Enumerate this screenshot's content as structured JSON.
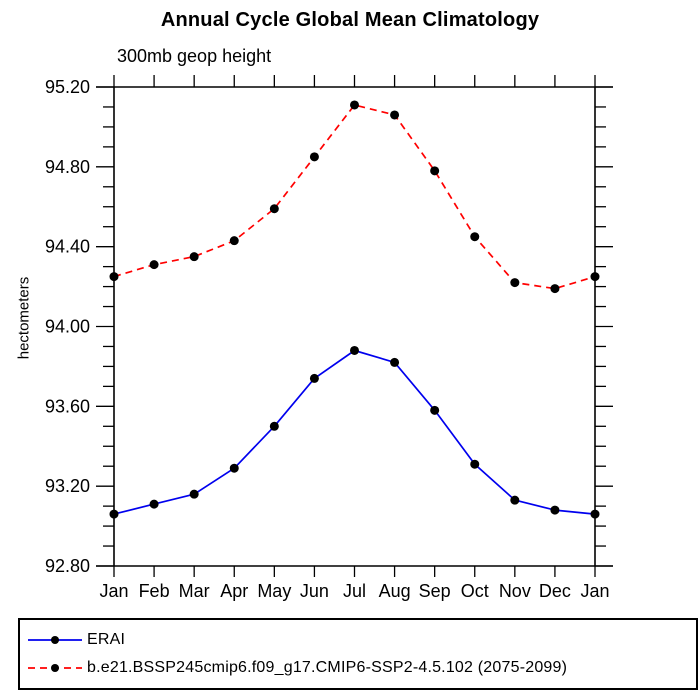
{
  "title": "Annual Cycle Global Mean Climatology",
  "subtitle": "300mb geop height",
  "chart_data": {
    "type": "line",
    "categories": [
      "Jan",
      "Feb",
      "Mar",
      "Apr",
      "May",
      "Jun",
      "Jul",
      "Aug",
      "Sep",
      "Oct",
      "Nov",
      "Dec",
      "Jan"
    ],
    "series": [
      {
        "name": "ERAI",
        "color": "#0000ee",
        "line_style": "solid",
        "marker": "filled-circle",
        "marker_color": "#000000",
        "values": [
          93.06,
          93.11,
          93.16,
          93.29,
          93.5,
          93.74,
          93.88,
          93.82,
          93.58,
          93.31,
          93.13,
          93.08,
          93.06
        ]
      },
      {
        "name": "b.e21.BSSP245cmip6.f09_g17.CMIP6-SSP2-4.5.102 (2075-2099)",
        "color": "#ff0000",
        "line_style": "dashed",
        "marker": "filled-circle",
        "marker_color": "#000000",
        "values": [
          94.25,
          94.31,
          94.35,
          94.43,
          94.59,
          94.85,
          95.11,
          95.06,
          94.78,
          94.45,
          94.22,
          94.19,
          94.25
        ]
      }
    ],
    "title": "Annual Cycle Global Mean Climatology",
    "subtitle": "300mb geop height",
    "xlabel": "",
    "ylabel": "hectometers",
    "ylim": [
      92.8,
      95.2
    ],
    "y_major_tick_labels": [
      "95.20",
      "94.80",
      "94.40",
      "94.00",
      "93.60",
      "93.20",
      "92.80"
    ],
    "y_major_step": 0.4,
    "y_minor_step": 0.1,
    "grid": false,
    "legend_position": "bottom-left-box"
  },
  "legend": {
    "items": [
      {
        "label": "ERAI",
        "color": "#0000ee",
        "style": "solid-line-with-dot",
        "marker_color": "#000000"
      },
      {
        "label": "b.e21.BSSP245cmip6.f09_g17.CMIP6-SSP2-4.5.102 (2075-2099)",
        "color": "#ff0000",
        "style": "dashed-line-with-dot",
        "marker_color": "#000000"
      }
    ]
  }
}
